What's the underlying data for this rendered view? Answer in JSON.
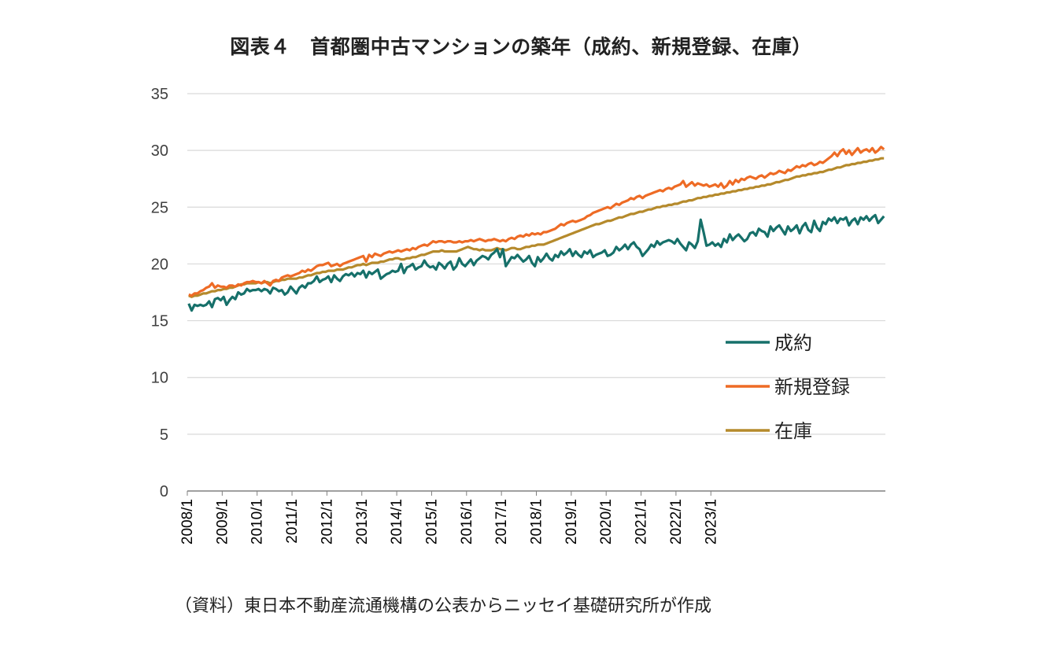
{
  "title": "図表４　首都圏中古マンションの築年（成約、新規登録、在庫）",
  "source": "（資料）東日本不動産流通機構の公表からニッセイ基礎研究所が作成",
  "chart_data": {
    "type": "line",
    "x_start": "2008/1",
    "x_end": "2023/12",
    "x_ticks": [
      "2008/1",
      "2009/1",
      "2010/1",
      "2011/1",
      "2012/1",
      "2013/1",
      "2014/1",
      "2015/1",
      "2016/1",
      "2017/1",
      "2018/1",
      "2019/1",
      "2020/1",
      "2021/1",
      "2022/1",
      "2023/1"
    ],
    "ylim": [
      0,
      35
    ],
    "y_ticks": [
      0,
      5,
      10,
      15,
      20,
      25,
      30,
      35
    ],
    "grid": true,
    "legend_position": "right",
    "colors": {
      "成約": "#16706a",
      "新規登録": "#ee6b25",
      "在庫": "#b58a2c"
    },
    "series": [
      {
        "name": "成約",
        "values": [
          16.5,
          15.9,
          16.4,
          16.3,
          16.4,
          16.3,
          16.4,
          16.7,
          16.2,
          16.9,
          17.0,
          16.8,
          17.1,
          16.4,
          16.8,
          17.1,
          16.9,
          17.5,
          17.3,
          17.4,
          17.8,
          17.6,
          17.7,
          17.7,
          17.8,
          17.6,
          17.8,
          17.7,
          17.4,
          17.9,
          17.8,
          17.6,
          17.7,
          17.3,
          17.5,
          18.0,
          17.7,
          17.4,
          17.9,
          18.1,
          17.9,
          18.3,
          18.3,
          18.5,
          18.9,
          18.4,
          18.6,
          18.7,
          18.9,
          18.4,
          19.0,
          18.7,
          18.5,
          18.9,
          19.1,
          19.0,
          19.2,
          18.9,
          19.2,
          19.1,
          19.4,
          18.8,
          19.3,
          19.1,
          19.3,
          19.5,
          18.7,
          18.9,
          19.1,
          19.2,
          19.4,
          19.3,
          19.4,
          20.0,
          19.2,
          19.7,
          19.8,
          20.0,
          19.5,
          19.7,
          19.8,
          20.3,
          19.9,
          19.7,
          19.8,
          19.5,
          20.1,
          19.9,
          19.6,
          20.0,
          20.2,
          19.5,
          19.8,
          20.5,
          20.0,
          19.8,
          20.1,
          20.4,
          19.9,
          20.3,
          20.5,
          20.7,
          20.6,
          20.4,
          20.8,
          21.0,
          21.3,
          20.6,
          21.3,
          19.8,
          20.2,
          20.6,
          20.5,
          20.8,
          20.5,
          20.2,
          20.4,
          20.7,
          20.1,
          19.8,
          20.6,
          20.2,
          20.5,
          20.9,
          20.5,
          20.3,
          20.8,
          20.6,
          21.1,
          20.8,
          21.0,
          21.3,
          20.7,
          21.1,
          20.8,
          20.6,
          21.1,
          20.9,
          21.2,
          20.6,
          20.8,
          20.9,
          21.0,
          21.2,
          20.7,
          20.8,
          21.0,
          21.5,
          21.2,
          21.4,
          21.7,
          21.3,
          21.7,
          21.9,
          21.5,
          21.3,
          20.7,
          21.0,
          21.3,
          21.7,
          21.5,
          22.0,
          21.7,
          21.9,
          22.0,
          22.1,
          22.0,
          21.8,
          22.2,
          21.8,
          21.5,
          21.2,
          21.9,
          21.7,
          21.4,
          22.0,
          23.9,
          22.8,
          21.6,
          21.7,
          21.9,
          21.6,
          21.8,
          21.5,
          22.2,
          21.9,
          22.6,
          22.1,
          22.4,
          22.6,
          22.3,
          22.0,
          22.2,
          22.7,
          22.8,
          22.5,
          23.1,
          22.9,
          22.8,
          22.4,
          23.3,
          22.9,
          23.2,
          23.4,
          23.0,
          22.6,
          23.3,
          22.9,
          23.1,
          23.4,
          22.7,
          23.3,
          23.6,
          23.0,
          22.8,
          23.8,
          23.2,
          22.9,
          23.7,
          23.5,
          24.0,
          23.8,
          24.1,
          23.6,
          24.0,
          23.9,
          24.1,
          23.4,
          23.8,
          24.0,
          23.5,
          24.1,
          23.9,
          24.2,
          23.8,
          24.1,
          24.3,
          23.6,
          23.9,
          24.2
        ]
      },
      {
        "name": "新規登録",
        "values": [
          17.3,
          17.2,
          17.4,
          17.4,
          17.6,
          17.7,
          17.9,
          18.0,
          18.3,
          17.9,
          18.1,
          18.0,
          18.0,
          17.9,
          18.1,
          18.1,
          18.0,
          18.2,
          18.1,
          18.3,
          18.4,
          18.4,
          18.5,
          18.4,
          18.4,
          18.3,
          18.5,
          18.3,
          18.1,
          18.5,
          18.6,
          18.5,
          18.8,
          18.9,
          19.0,
          18.9,
          19.0,
          19.1,
          19.2,
          19.4,
          19.3,
          19.5,
          19.4,
          19.6,
          19.8,
          19.9,
          19.9,
          20.0,
          20.1,
          19.8,
          19.9,
          20.0,
          19.8,
          20.0,
          20.1,
          20.2,
          20.3,
          20.4,
          20.5,
          20.6,
          20.7,
          20.2,
          20.8,
          20.6,
          20.9,
          20.8,
          20.7,
          20.9,
          21.0,
          21.1,
          21.0,
          21.1,
          21.2,
          21.1,
          21.2,
          21.3,
          21.2,
          21.4,
          21.3,
          21.5,
          21.6,
          21.7,
          21.6,
          21.8,
          22.0,
          21.9,
          22.0,
          22.0,
          21.9,
          22.0,
          22.0,
          21.9,
          21.9,
          22.0,
          21.9,
          22.0,
          22.0,
          22.1,
          22.0,
          22.1,
          22.2,
          22.1,
          22.0,
          22.1,
          22.1,
          22.2,
          22.1,
          22.0,
          22.1,
          22.0,
          22.2,
          22.3,
          22.2,
          22.4,
          22.5,
          22.4,
          22.6,
          22.5,
          22.7,
          22.6,
          22.7,
          22.6,
          22.8,
          22.8,
          22.9,
          23.0,
          23.1,
          23.3,
          23.5,
          23.4,
          23.6,
          23.7,
          23.8,
          23.7,
          23.8,
          23.9,
          24.0,
          24.2,
          24.3,
          24.5,
          24.6,
          24.7,
          24.8,
          24.9,
          25.0,
          24.9,
          25.1,
          25.3,
          25.2,
          25.4,
          25.5,
          25.6,
          25.8,
          25.7,
          25.9,
          26.0,
          25.8,
          26.0,
          26.1,
          26.2,
          26.3,
          26.4,
          26.5,
          26.4,
          26.6,
          26.7,
          26.6,
          26.8,
          26.9,
          27.0,
          27.3,
          26.8,
          27.0,
          27.2,
          26.9,
          27.1,
          27.0,
          26.9,
          27.0,
          26.8,
          26.9,
          27.0,
          26.8,
          27.1,
          26.7,
          26.9,
          27.3,
          27.0,
          27.4,
          27.2,
          27.5,
          27.4,
          27.6,
          27.7,
          27.6,
          27.5,
          27.7,
          27.8,
          27.6,
          27.8,
          28.0,
          27.9,
          28.0,
          28.2,
          28.1,
          28.0,
          28.3,
          28.2,
          28.4,
          28.6,
          28.5,
          28.7,
          28.6,
          28.8,
          28.9,
          28.7,
          28.8,
          29.0,
          28.9,
          29.1,
          29.3,
          29.5,
          29.8,
          29.5,
          29.9,
          30.1,
          29.7,
          30.0,
          29.6,
          29.9,
          30.2,
          29.8,
          30.0,
          30.1,
          29.9,
          30.2,
          29.8,
          30.0,
          30.3,
          30.1
        ]
      },
      {
        "name": "在庫",
        "values": [
          17.2,
          17.1,
          17.2,
          17.2,
          17.3,
          17.4,
          17.4,
          17.5,
          17.6,
          17.6,
          17.7,
          17.7,
          17.8,
          17.8,
          17.9,
          17.9,
          18.0,
          18.1,
          18.2,
          18.2,
          18.3,
          18.3,
          18.3,
          18.3,
          18.4,
          18.3,
          18.4,
          18.4,
          18.3,
          18.4,
          18.5,
          18.5,
          18.6,
          18.6,
          18.7,
          18.7,
          18.7,
          18.7,
          18.8,
          18.8,
          18.9,
          19.0,
          19.0,
          19.1,
          19.2,
          19.2,
          19.3,
          19.3,
          19.4,
          19.4,
          19.4,
          19.5,
          19.5,
          19.5,
          19.6,
          19.7,
          19.7,
          19.8,
          19.9,
          19.9,
          20.0,
          19.9,
          20.0,
          20.1,
          20.1,
          20.1,
          20.2,
          20.2,
          20.3,
          20.4,
          20.4,
          20.5,
          20.5,
          20.4,
          20.4,
          20.5,
          20.5,
          20.6,
          20.6,
          20.7,
          20.8,
          20.8,
          20.9,
          21.0,
          21.1,
          21.1,
          21.1,
          21.2,
          21.1,
          21.1,
          21.1,
          21.1,
          21.1,
          21.2,
          21.3,
          21.4,
          21.5,
          21.4,
          21.3,
          21.3,
          21.2,
          21.3,
          21.2,
          21.2,
          21.2,
          21.3,
          21.4,
          21.3,
          21.3,
          21.2,
          21.3,
          21.4,
          21.4,
          21.3,
          21.3,
          21.4,
          21.5,
          21.5,
          21.6,
          21.6,
          21.7,
          21.7,
          21.7,
          21.8,
          21.9,
          22.0,
          22.1,
          22.2,
          22.3,
          22.4,
          22.5,
          22.6,
          22.7,
          22.8,
          22.9,
          23.0,
          23.1,
          23.2,
          23.3,
          23.4,
          23.5,
          23.5,
          23.6,
          23.7,
          23.8,
          23.8,
          23.9,
          24.0,
          24.1,
          24.1,
          24.2,
          24.3,
          24.4,
          24.4,
          24.5,
          24.6,
          24.6,
          24.7,
          24.8,
          24.8,
          24.9,
          25.0,
          25.0,
          25.1,
          25.1,
          25.2,
          25.2,
          25.3,
          25.3,
          25.4,
          25.5,
          25.5,
          25.6,
          25.6,
          25.7,
          25.8,
          25.8,
          25.9,
          25.9,
          26.0,
          26.0,
          26.1,
          26.1,
          26.2,
          26.2,
          26.3,
          26.3,
          26.4,
          26.4,
          26.5,
          26.5,
          26.6,
          26.6,
          26.7,
          26.7,
          26.8,
          26.8,
          26.9,
          26.9,
          27.0,
          27.0,
          27.1,
          27.2,
          27.2,
          27.3,
          27.4,
          27.4,
          27.5,
          27.6,
          27.7,
          27.7,
          27.8,
          27.8,
          27.9,
          27.9,
          28.0,
          28.0,
          28.1,
          28.1,
          28.2,
          28.3,
          28.3,
          28.4,
          28.5,
          28.5,
          28.6,
          28.7,
          28.7,
          28.8,
          28.8,
          28.9,
          28.9,
          29.0,
          29.0,
          29.1,
          29.1,
          29.2,
          29.2,
          29.3,
          29.3
        ]
      }
    ]
  }
}
